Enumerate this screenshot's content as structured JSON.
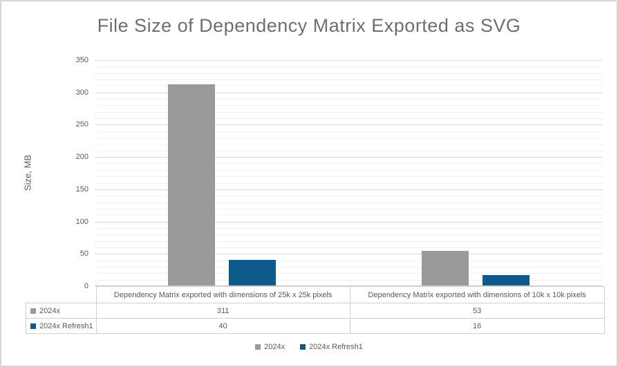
{
  "chart_data": {
    "type": "bar",
    "title": "File Size of Dependency Matrix Exported as SVG",
    "ylabel": "Size, MB",
    "xlabel": "",
    "categories": [
      "Dependency Matrix exported with dimensions of 25k x 25k pixels",
      "Dependency Matrix exported with dimensions of 10k x 10k pixels"
    ],
    "series": [
      {
        "name": "2024x",
        "color": "#9A9A9C",
        "values": [
          311,
          53
        ]
      },
      {
        "name": "2024x Refresh1",
        "color": "#0E5A8C",
        "values": [
          40,
          16
        ]
      }
    ],
    "ylim": [
      0,
      350
    ],
    "y_major_ticks": [
      0,
      50,
      100,
      150,
      200,
      250,
      300,
      350
    ],
    "y_minor_step": 10,
    "grid": true,
    "legend_position": "bottom",
    "data_table_shown": true
  },
  "colors": {
    "title_text": "#6e6e6e",
    "axis_text": "#595959",
    "grid_major": "#d9d9d9",
    "grid_minor": "#f2f2f2",
    "table_border": "#cfcfcf",
    "frame_border": "#d6d6d6",
    "background": "#ffffff"
  }
}
